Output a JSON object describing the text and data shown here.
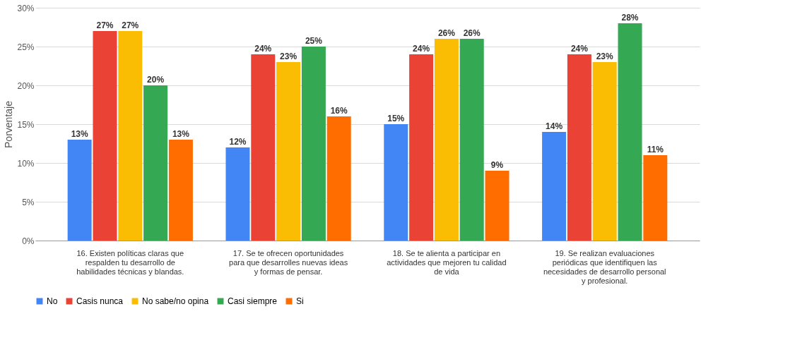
{
  "chart_data": {
    "type": "bar",
    "ylabel": "Porventaje",
    "categories": [
      "16. Existen políticas claras que respalden tu desarrollo de habilidades técnicas y blandas.",
      "17. Se te ofrecen oportunidades para que desarrolles nuevas ideas y formas de pensar.",
      "18. Se te alienta a participar en actividades que mejoren tu calidad de vida",
      "19. Se realizan evaluaciones periódicas que identifiquen las necesidades de desarrollo personal y profesional."
    ],
    "series": [
      {
        "name": "No",
        "color": "#4285f4",
        "values": [
          13,
          12,
          15,
          14
        ],
        "value_labels": [
          "13%",
          "12%",
          "15%",
          "14%"
        ]
      },
      {
        "name": "Casis nunca",
        "color": "#ea4335",
        "values": [
          27,
          24,
          24,
          24
        ],
        "value_labels": [
          "27%",
          "24%",
          "24%",
          "24%"
        ]
      },
      {
        "name": "No sabe/no opina",
        "color": "#fbbc04",
        "values": [
          27,
          23,
          26,
          23
        ],
        "value_labels": [
          "27%",
          "23%",
          "26%",
          "23%"
        ]
      },
      {
        "name": "Casi siempre",
        "color": "#34a853",
        "values": [
          20,
          25,
          26,
          28
        ],
        "value_labels": [
          "20%",
          "25%",
          "26%",
          "28%"
        ]
      },
      {
        "name": "Si",
        "color": "#ff6d01",
        "values": [
          13,
          16,
          9,
          11
        ],
        "value_labels": [
          "13%",
          "16%",
          "9%",
          "11%"
        ]
      }
    ],
    "ylim": [
      0,
      30
    ],
    "yticks": [
      {
        "value": 0,
        "label": "0%"
      },
      {
        "value": 5,
        "label": "5%"
      },
      {
        "value": 10,
        "label": "10%"
      },
      {
        "value": 15,
        "label": "15%"
      },
      {
        "value": 20,
        "label": "20%"
      },
      {
        "value": 25,
        "label": "25%"
      },
      {
        "value": 30,
        "label": "30%"
      }
    ],
    "grid": "y",
    "legend": "bottom"
  }
}
